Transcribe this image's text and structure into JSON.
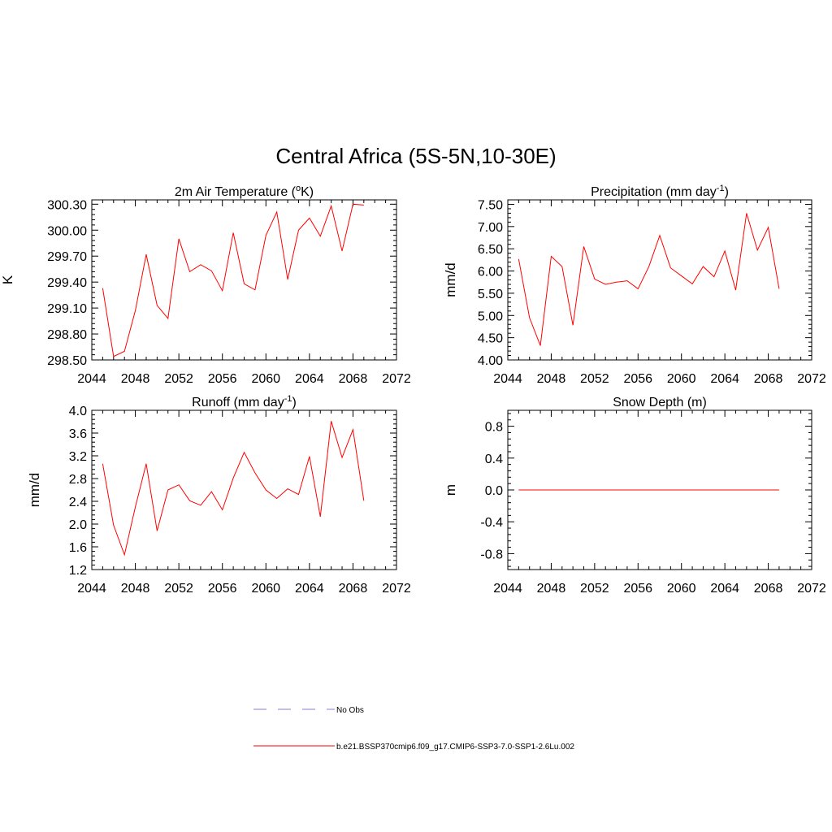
{
  "page_title": "Central Africa (5S-5N,10-30E)",
  "legend": {
    "items": [
      {
        "label": "No Obs",
        "color": "#9999dd",
        "style": "dashed"
      },
      {
        "label": "b.e21.BSSP370cmip6.f09_g17.CMIP6-SSP3-7.0-SSP1-2.6Lu.002",
        "color": "#ff0000",
        "style": "solid"
      }
    ]
  },
  "chart_data": [
    {
      "id": "temp",
      "type": "line",
      "title": "2m Air Temperature (",
      "title_sup": "o",
      "title_tail": "K)",
      "ylabel": "K",
      "xlim": [
        2044,
        2072
      ],
      "ylim": [
        298.5,
        300.35
      ],
      "xticks": [
        2044,
        2048,
        2052,
        2056,
        2060,
        2064,
        2068,
        2072
      ],
      "yticks": [
        298.5,
        298.8,
        299.1,
        299.4,
        299.7,
        300.0,
        300.3
      ],
      "yticklabels": [
        "298.50",
        "298.80",
        "299.10",
        "299.40",
        "299.70",
        "300.00",
        "300.30"
      ],
      "ydecimals": 2,
      "series": [
        {
          "color": "#ff0000",
          "x": [
            2045,
            2046,
            2047,
            2048,
            2049,
            2050,
            2051,
            2052,
            2053,
            2054,
            2055,
            2056,
            2057,
            2058,
            2059,
            2060,
            2061,
            2062,
            2063,
            2064,
            2065,
            2066,
            2067,
            2068,
            2069
          ],
          "values": [
            299.33,
            298.54,
            298.6,
            299.07,
            299.72,
            299.13,
            298.98,
            299.9,
            299.52,
            299.6,
            299.53,
            299.3,
            299.97,
            299.38,
            299.31,
            299.94,
            300.21,
            299.43,
            300.0,
            300.14,
            299.93,
            300.28,
            299.76,
            300.3,
            300.29
          ]
        }
      ]
    },
    {
      "id": "precip",
      "type": "line",
      "title": "Precipitation (mm day",
      "title_sup": "-1",
      "title_tail": ")",
      "ylabel": "mm/d",
      "xlim": [
        2044,
        2072
      ],
      "ylim": [
        4.0,
        7.6
      ],
      "xticks": [
        2044,
        2048,
        2052,
        2056,
        2060,
        2064,
        2068,
        2072
      ],
      "yticks": [
        4.0,
        4.5,
        5.0,
        5.5,
        6.0,
        6.5,
        7.0,
        7.5
      ],
      "yticklabels": [
        "4.00",
        "4.50",
        "5.00",
        "5.50",
        "6.00",
        "6.50",
        "7.00",
        "7.50"
      ],
      "ydecimals": 2,
      "series": [
        {
          "color": "#ff0000",
          "x": [
            2045,
            2046,
            2047,
            2048,
            2049,
            2050,
            2051,
            2052,
            2053,
            2054,
            2055,
            2056,
            2057,
            2058,
            2059,
            2060,
            2061,
            2062,
            2063,
            2064,
            2065,
            2066,
            2067,
            2068,
            2069
          ],
          "values": [
            6.27,
            4.95,
            4.32,
            6.33,
            6.1,
            4.78,
            6.55,
            5.82,
            5.7,
            5.75,
            5.78,
            5.6,
            6.1,
            6.8,
            6.07,
            5.89,
            5.71,
            6.1,
            5.87,
            6.45,
            5.57,
            7.3,
            6.47,
            6.98,
            5.6
          ]
        }
      ]
    },
    {
      "id": "runoff",
      "type": "line",
      "title": "Runoff (mm day",
      "title_sup": "-1",
      "title_tail": ")",
      "ylabel": "mm/d",
      "xlim": [
        2044,
        2072
      ],
      "ylim": [
        1.2,
        4.0
      ],
      "xticks": [
        2044,
        2048,
        2052,
        2056,
        2060,
        2064,
        2068,
        2072
      ],
      "yticks": [
        1.2,
        1.6,
        2.0,
        2.4,
        2.8,
        3.2,
        3.6,
        4.0
      ],
      "yticklabels": [
        "1.2",
        "1.6",
        "2.0",
        "2.4",
        "2.8",
        "3.2",
        "3.6",
        "4.0"
      ],
      "ydecimals": 1,
      "series": [
        {
          "color": "#ff0000",
          "x": [
            2045,
            2046,
            2047,
            2048,
            2049,
            2050,
            2051,
            2052,
            2053,
            2054,
            2055,
            2056,
            2057,
            2058,
            2059,
            2060,
            2061,
            2062,
            2063,
            2064,
            2065,
            2066,
            2067,
            2068,
            2069
          ],
          "values": [
            3.06,
            1.98,
            1.46,
            2.3,
            3.06,
            1.88,
            2.6,
            2.69,
            2.41,
            2.33,
            2.57,
            2.25,
            2.81,
            3.26,
            2.9,
            2.6,
            2.45,
            2.62,
            2.52,
            3.19,
            2.13,
            3.81,
            3.17,
            3.66,
            2.41
          ]
        }
      ]
    },
    {
      "id": "snow",
      "type": "line",
      "title": "Snow Depth (m)",
      "title_sup": "",
      "title_tail": "",
      "ylabel": "m",
      "xlim": [
        2044,
        2072
      ],
      "ylim": [
        -1.0,
        1.0
      ],
      "xticks": [
        2044,
        2048,
        2052,
        2056,
        2060,
        2064,
        2068,
        2072
      ],
      "yticks": [
        -0.8,
        -0.4,
        0.0,
        0.4,
        0.8
      ],
      "yticklabels": [
        "-0.8",
        "-0.4",
        "0.0",
        "0.4",
        "0.8"
      ],
      "ydecimals": 1,
      "series": [
        {
          "color": "#ff0000",
          "x": [
            2045,
            2046,
            2047,
            2048,
            2049,
            2050,
            2051,
            2052,
            2053,
            2054,
            2055,
            2056,
            2057,
            2058,
            2059,
            2060,
            2061,
            2062,
            2063,
            2064,
            2065,
            2066,
            2067,
            2068,
            2069
          ],
          "values": [
            0,
            0,
            0,
            0,
            0,
            0,
            0,
            0,
            0,
            0,
            0,
            0,
            0,
            0,
            0,
            0,
            0,
            0,
            0,
            0,
            0,
            0,
            0,
            0,
            0
          ]
        }
      ]
    }
  ]
}
